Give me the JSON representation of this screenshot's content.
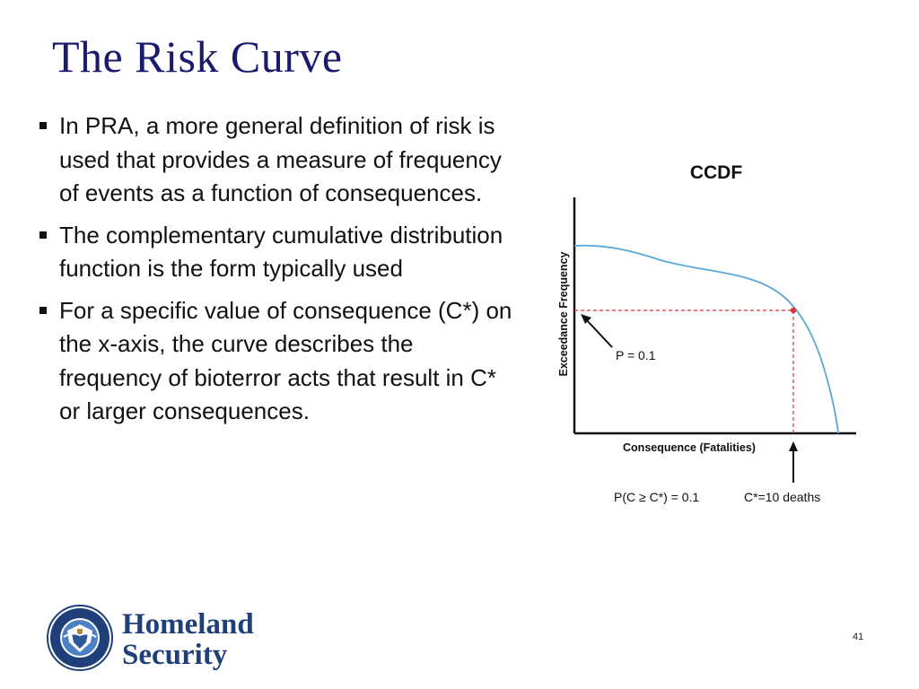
{
  "slide": {
    "title": "The Risk Curve",
    "bullets": [
      "In PRA, a more general definition of risk is used that provides a measure of frequency of events as a function of consequences.",
      "The complementary cumulative distribution function is the form typically used",
      "For a specific value of consequence (C*) on the x-axis, the curve describes the frequency of bioterror acts that result in C* or larger consequences."
    ],
    "page_number": "41"
  },
  "footer": {
    "brand_line1": "Homeland",
    "brand_line2": "Security",
    "seal_icon": "dhs-seal-icon"
  },
  "chart_data": {
    "type": "line",
    "title": "CCDF",
    "xlabel": "Consequence (Fatalities)",
    "ylabel": "Exceedance Frequency",
    "ticks": "none",
    "grid": false,
    "annotations": {
      "p_label": "P = 0.1",
      "prob_label": "P(C ≥ C*) = 0.1",
      "cstar_label": "C*=10 deaths"
    },
    "line_color": "#5aa8d8",
    "marker_color": "#d9343e",
    "reference_line_color": "#d9343e"
  }
}
